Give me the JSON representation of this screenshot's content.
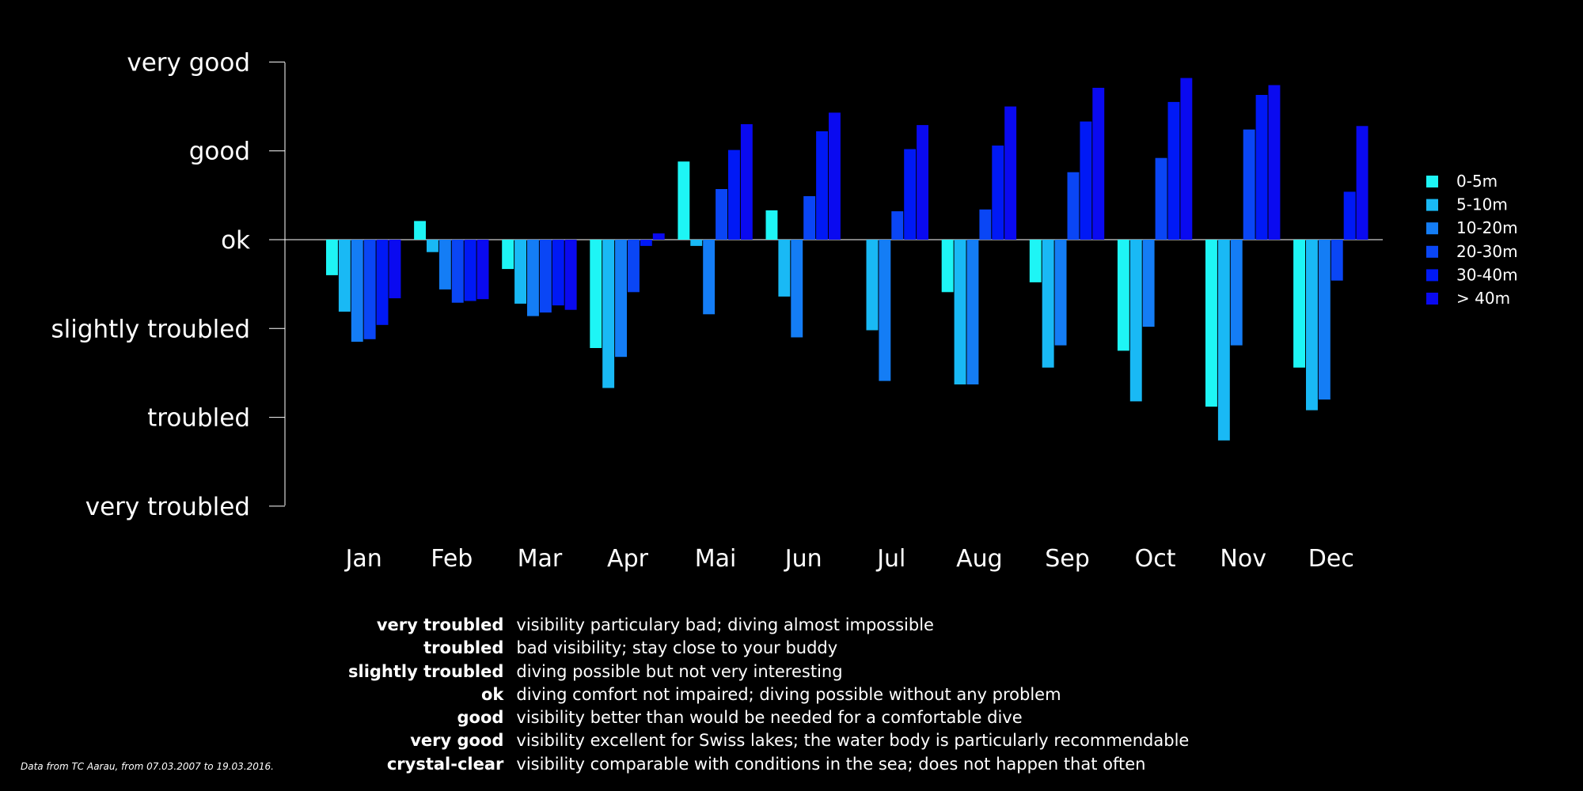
{
  "chart_data": {
    "type": "bar",
    "title": "",
    "xlabel": "",
    "ylabel": "",
    "categories": [
      "Jan",
      "Feb",
      "Mar",
      "Apr",
      "Mai",
      "Jun",
      "Jul",
      "Aug",
      "Sep",
      "Oct",
      "Nov",
      "Dec"
    ],
    "y_tick_labels": [
      "very troubled",
      "troubled",
      "slightly troubled",
      "ok",
      "good",
      "very good"
    ],
    "y_tick_values": [
      -3,
      -2,
      -1,
      0,
      1,
      2
    ],
    "ylim": [
      -3,
      2
    ],
    "grid": false,
    "legend_position": "right",
    "series": [
      {
        "name": "0-5m",
        "color": "#1EF5F5",
        "values": [
          -0.4,
          0.21,
          -0.33,
          -1.22,
          0.88,
          0.33,
          null,
          -0.59,
          -0.48,
          -1.25,
          -1.88,
          -1.44
        ]
      },
      {
        "name": "5-10m",
        "color": "#19B9F5",
        "values": [
          -0.81,
          -0.14,
          -0.72,
          -1.67,
          -0.07,
          -0.64,
          -1.02,
          -1.63,
          -1.44,
          -1.82,
          -2.26,
          -1.92
        ]
      },
      {
        "name": "10-20m",
        "color": "#147DF5",
        "values": [
          -1.15,
          -0.56,
          -0.86,
          -1.32,
          -0.84,
          -1.1,
          -1.59,
          -1.63,
          -1.19,
          -0.98,
          -1.19,
          -1.8
        ]
      },
      {
        "name": "20-30m",
        "color": "#0A46F5",
        "values": [
          -1.12,
          -0.71,
          -0.82,
          -0.59,
          0.57,
          0.49,
          0.32,
          0.34,
          0.76,
          0.92,
          1.24,
          -0.46
        ]
      },
      {
        "name": "30-40m",
        "color": "#0019F5",
        "values": [
          -0.96,
          -0.69,
          -0.74,
          -0.07,
          1.01,
          1.22,
          1.02,
          1.06,
          1.33,
          1.55,
          1.63,
          0.54
        ]
      },
      {
        "name": "> 40m",
        "color": "#0A0AF0",
        "values": [
          -0.66,
          -0.67,
          -0.79,
          0.07,
          1.3,
          1.43,
          1.29,
          1.5,
          1.71,
          1.82,
          1.74,
          1.28
        ]
      }
    ]
  },
  "definitions": [
    {
      "term": "very troubled",
      "text": "visibility particulary bad; diving almost impossible"
    },
    {
      "term": "troubled",
      "text": "bad visibility; stay close to your buddy"
    },
    {
      "term": "slightly troubled",
      "text": "diving possible but not very interesting"
    },
    {
      "term": "ok",
      "text": "diving comfort not impaired; diving possible without any problem"
    },
    {
      "term": "good",
      "text": "visibility better than would be needed for a comfortable dive"
    },
    {
      "term": "very good",
      "text": "visibility excellent for Swiss lakes; the water body is particularly recommendable"
    },
    {
      "term": "crystal-clear",
      "text": "visibility comparable with conditions in the sea; does not happen that often"
    }
  ],
  "source_note": "Data from TC Aarau, from 07.03.2007 to 19.03.2016."
}
